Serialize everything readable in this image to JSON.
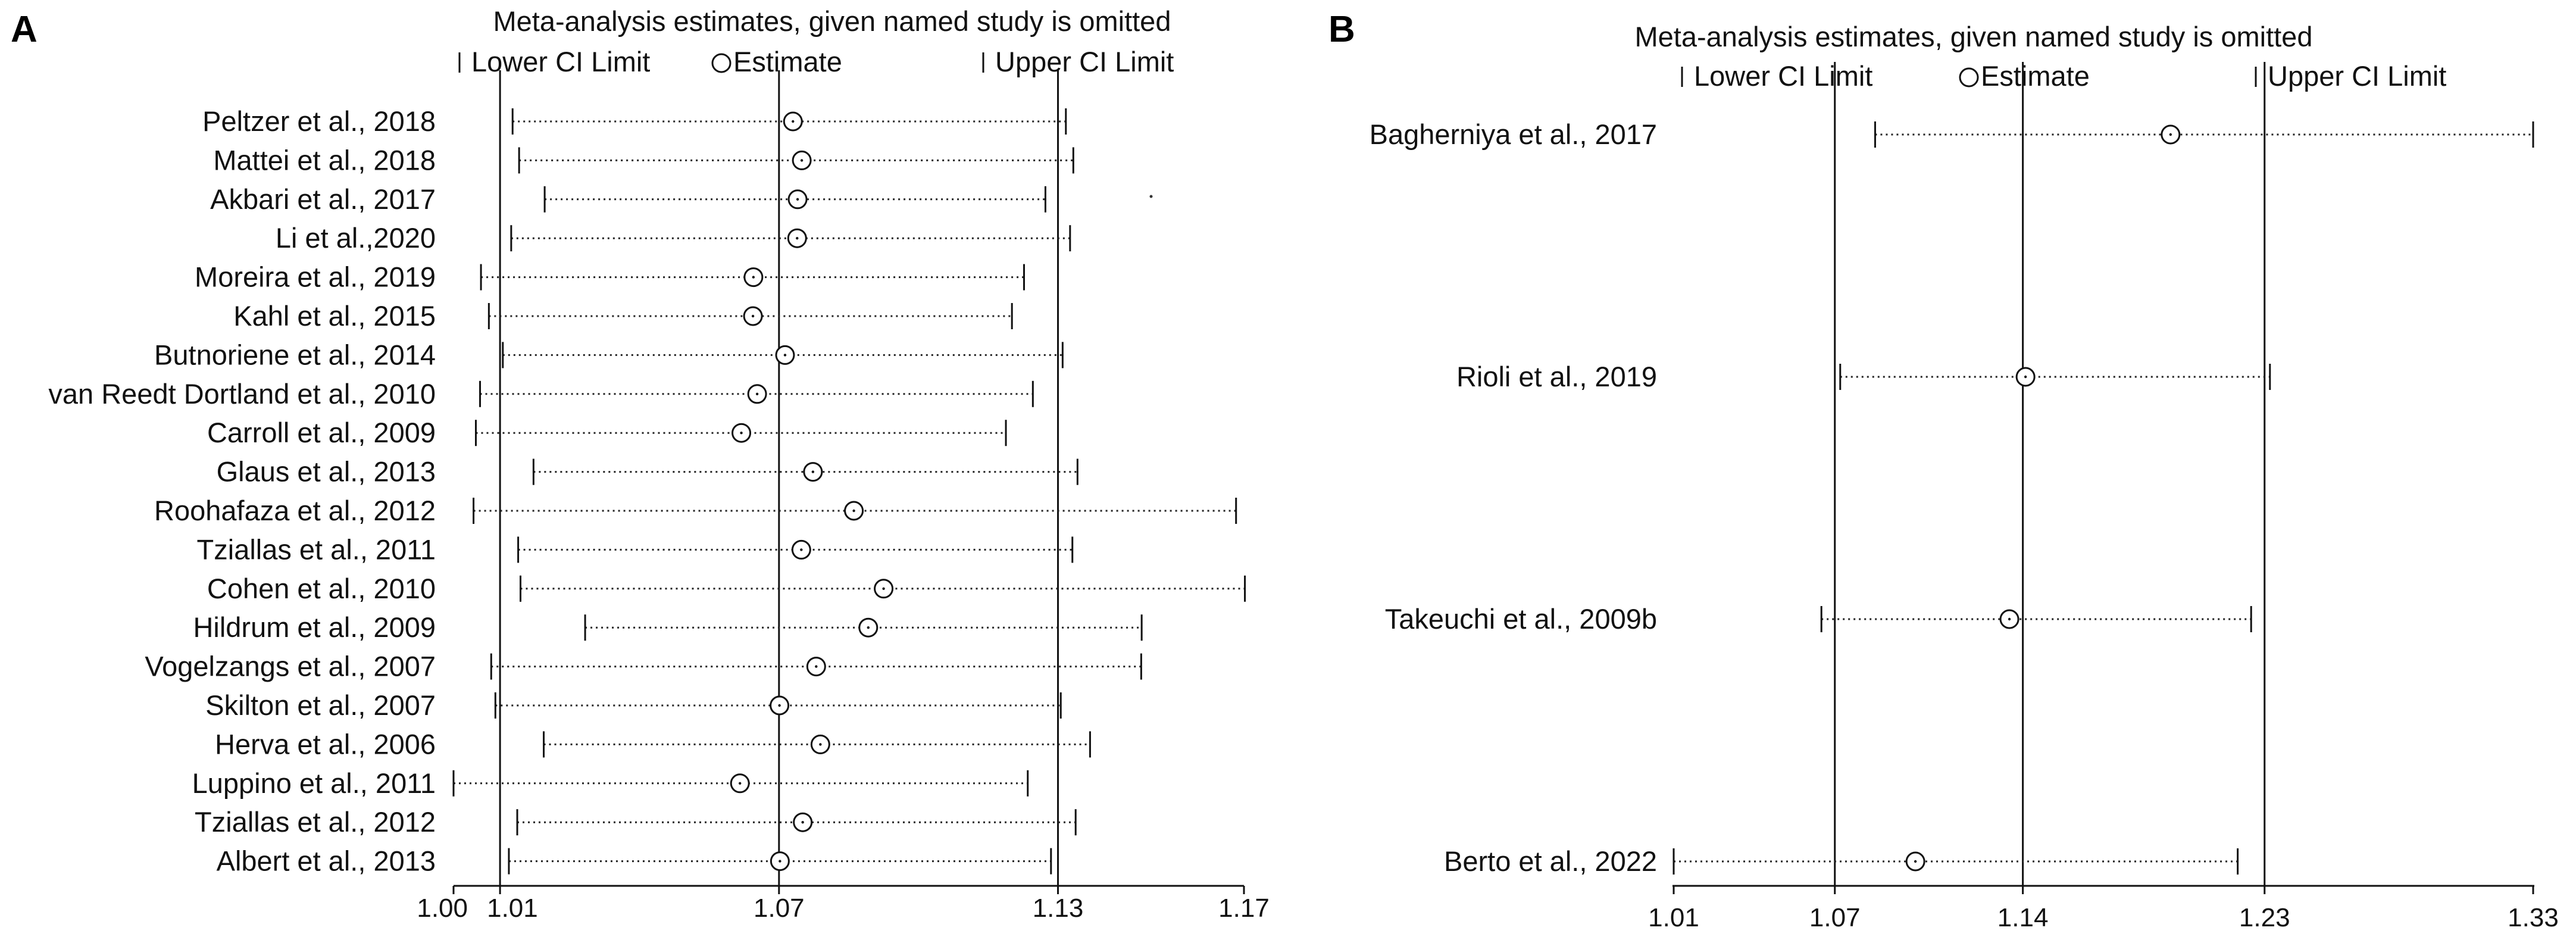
{
  "chart_data": [
    {
      "panel": "A",
      "type": "forest",
      "title": "Meta-analysis estimates, given named study is omitted",
      "legend": {
        "lower": "Lower CI Limit",
        "estimate": "Estimate",
        "upper": "Upper CI Limit"
      },
      "xlim": [
        1.0,
        1.17
      ],
      "ticks": [
        {
          "label": "1.00",
          "value": 1.0
        },
        {
          "label": "1.01",
          "value": 1.01
        },
        {
          "label": "1.07",
          "value": 1.07
        },
        {
          "label": "1.13",
          "value": 1.13
        },
        {
          "label": "1.17",
          "value": 1.17
        }
      ],
      "reference_lines": [
        1.01,
        1.07,
        1.13
      ],
      "studies": [
        {
          "label": "Peltzer et al., 2018",
          "lower": 1.0127,
          "estimate": 1.073,
          "upper": 1.1317
        },
        {
          "label": "Mattei et al., 2018",
          "lower": 1.0141,
          "estimate": 1.0749,
          "upper": 1.1333
        },
        {
          "label": "Akbari et al., 2017",
          "lower": 1.0196,
          "estimate": 1.074,
          "upper": 1.1273
        },
        {
          "label": "Li et al.,2020",
          "lower": 1.0124,
          "estimate": 1.0739,
          "upper": 1.1326
        },
        {
          "label": "Moreira et al., 2019",
          "lower": 1.0059,
          "estimate": 1.0645,
          "upper": 1.1227
        },
        {
          "label": "Kahl et al., 2015",
          "lower": 1.0076,
          "estimate": 1.0644,
          "upper": 1.1201
        },
        {
          "label": "Butnoriene et al., 2014",
          "lower": 1.0106,
          "estimate": 1.0713,
          "upper": 1.131
        },
        {
          "label": "van Reedt Dortland et al., 2010",
          "lower": 1.0057,
          "estimate": 1.0653,
          "upper": 1.1246
        },
        {
          "label": "Carroll et al., 2009",
          "lower": 1.0048,
          "estimate": 1.0619,
          "upper": 1.1188
        },
        {
          "label": "Glaus et al., 2013",
          "lower": 1.0172,
          "estimate": 1.0773,
          "upper": 1.1342
        },
        {
          "label": "Roohafaza et al., 2012",
          "lower": 1.0043,
          "estimate": 1.0861,
          "upper": 1.1683
        },
        {
          "label": "Tziallas et al., 2011",
          "lower": 1.0139,
          "estimate": 1.0748,
          "upper": 1.1331
        },
        {
          "label": "Cohen et al., 2010",
          "lower": 1.0144,
          "estimate": 1.0925,
          "upper": 1.1702
        },
        {
          "label": "Hildrum et al., 2009",
          "lower": 1.0283,
          "estimate": 1.0892,
          "upper": 1.148
        },
        {
          "label": "Vogelzangs et al., 2007",
          "lower": 1.0081,
          "estimate": 1.078,
          "upper": 1.1479
        },
        {
          "label": "Skilton et al., 2007",
          "lower": 1.009,
          "estimate": 1.0701,
          "upper": 1.1306
        },
        {
          "label": "Herva et al., 2006",
          "lower": 1.0194,
          "estimate": 1.0789,
          "upper": 1.1369
        },
        {
          "label": "Luppino et al., 2011",
          "lower": 1.0,
          "estimate": 1.0616,
          "upper": 1.1235
        },
        {
          "label": "Tziallas et al., 2012",
          "lower": 1.0137,
          "estimate": 1.0751,
          "upper": 1.1338
        },
        {
          "label": "Albert et al., 2013",
          "lower": 1.0119,
          "estimate": 1.0702,
          "upper": 1.1285
        }
      ]
    },
    {
      "panel": "B",
      "type": "forest",
      "title": "Meta-analysis estimates, given named study is omitted",
      "legend": {
        "lower": "Lower CI Limit",
        "estimate": "Estimate",
        "upper": "Upper CI Limit"
      },
      "xlim": [
        1.01,
        1.33
      ],
      "ticks": [
        {
          "label": "1.01",
          "value": 1.01
        },
        {
          "label": "1.07",
          "value": 1.07
        },
        {
          "label": "1.14",
          "value": 1.14
        },
        {
          "label": "1.23",
          "value": 1.23
        },
        {
          "label": "1.33",
          "value": 1.33
        }
      ],
      "reference_lines": [
        1.07,
        1.14,
        1.23
      ],
      "studies": [
        {
          "label": "Bagherniya et al., 2017",
          "lower": 1.085,
          "estimate": 1.195,
          "upper": 1.33
        },
        {
          "label": "Rioli et al., 2019",
          "lower": 1.072,
          "estimate": 1.141,
          "upper": 1.232
        },
        {
          "label": "Takeuchi et al., 2009b",
          "lower": 1.065,
          "estimate": 1.135,
          "upper": 1.225
        },
        {
          "label": "Berto et al., 2022",
          "lower": 1.01,
          "estimate": 1.1,
          "upper": 1.22
        }
      ]
    }
  ],
  "panels": {
    "a": {
      "letter": "A"
    },
    "b": {
      "letter": "B"
    }
  }
}
